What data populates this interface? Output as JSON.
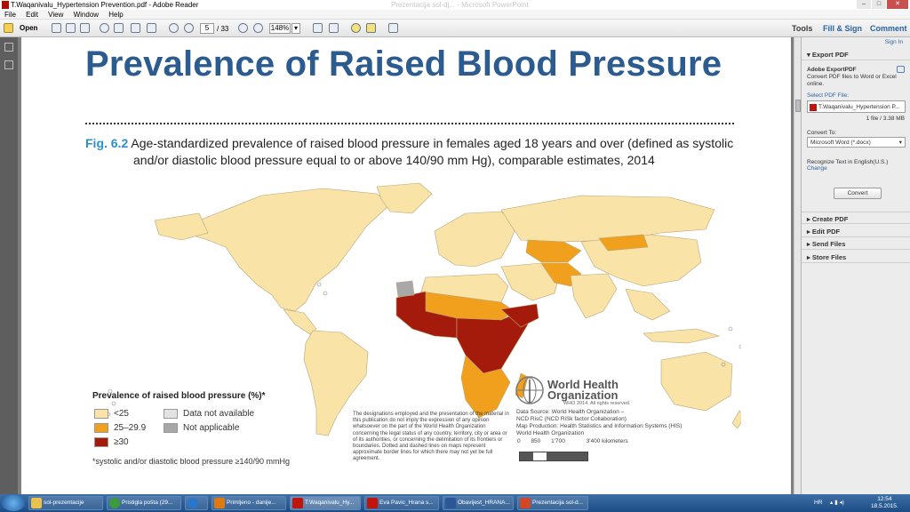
{
  "window": {
    "title": "T.Waqanivalu_Hypertension Prevention.pdf - Adobe Reader",
    "background_title": "Prezentacija sol-dj... - Microsoft PowerPoint"
  },
  "menu": [
    "File",
    "Edit",
    "View",
    "Window",
    "Help"
  ],
  "toolbar": {
    "open_label": "Open",
    "page_number": "5",
    "page_total": "/ 33",
    "zoom": "148%",
    "tools_label": "Tools",
    "fill_sign_label": "Fill & Sign",
    "comment_label": "Comment"
  },
  "document": {
    "title": "Prevalence of Raised Blood Pressure",
    "fig_label": "Fig. 6.2",
    "caption_line1": "Age-standardized prevalence of raised blood pressure in females aged 18 years and over (defined as systolic",
    "caption_line2": "and/or diastolic blood pressure equal to or above 140/90 mm Hg), comparable estimates, 2014",
    "legend": {
      "title": "Prevalence of raised blood pressure (%)*",
      "items": [
        {
          "label": "<25",
          "color": "#f9e3a7"
        },
        {
          "label": "25–29.9",
          "color": "#f0a01c"
        },
        {
          "label": "≥30",
          "color": "#a51b0b"
        },
        {
          "label": "Data not available",
          "color": "#e3e3e3"
        },
        {
          "label": "Not applicable",
          "color": "#a8a8a8"
        }
      ]
    },
    "footnote": "*systolic and/or diastolic blood pressure ≥140/90 mmHg",
    "disclaimer": "The designations employed and the presentation of the material in this publication do not imply the expression of any opinion whatsoever on the part of the World Health Organization concerning the legal status of any country, territory, city or area or of its authorities, or concerning the delimitation of its frontiers or boundaries. Dotted and dashed lines on maps represent approximate border lines for which there may not yet be full agreement.",
    "who_name_1": "World Health",
    "who_name_2": "Organization",
    "who_copyright": "WHO 2014. All rights reserved.",
    "data_source_1": "Data Source: World Health Organization –",
    "data_source_2": "NCD RisC (NCD RiSk factor Collaboration)",
    "map_production_1": "Map Production: Health Statistics and Information Systems (HIS)",
    "map_production_2": "World Health Organization",
    "scale_labels": [
      "0",
      "850",
      "1'700",
      "3'400 kilometers"
    ]
  },
  "panel": {
    "sign_in": "Sign In",
    "export_pdf": "Export PDF",
    "adobe_exportpdf": "Adobe ExportPDF",
    "export_desc": "Convert PDF files to Word or Excel online.",
    "select_pdf_label": "Select PDF File:",
    "selected_file": "T.Waqanivalu_Hypertension P...",
    "file_count": "1 file / 3.38 MB",
    "convert_to_label": "Convert To:",
    "convert_to_value": "Microsoft Word (*.docx)",
    "recognize_text": "Recognize Text in English(U.S.)",
    "change_link": "Change",
    "convert_button": "Convert",
    "sections": [
      "Create PDF",
      "Edit PDF",
      "Send Files",
      "Store Files"
    ]
  },
  "taskbar": {
    "items": [
      {
        "label": "sol-prezentacije",
        "color": "#e8c24a"
      },
      {
        "label": "Pristigla pošta (29...",
        "color": "#3b9c3b"
      },
      {
        "label": "",
        "color": "#2a77c9"
      },
      {
        "label": "Primljeno - danije...",
        "color": "#e07a10"
      },
      {
        "label": "T.Waqanivalu_Hy...",
        "color": "#c0150d"
      },
      {
        "label": "Eva Pavic_Hrana s...",
        "color": "#c0150d"
      },
      {
        "label": "Obavijest_HRANA...",
        "color": "#2b5797"
      },
      {
        "label": "Prezentacija sol-d...",
        "color": "#d24726"
      }
    ],
    "lang": "HR",
    "time": "12:54",
    "date": "18.5.2015."
  }
}
